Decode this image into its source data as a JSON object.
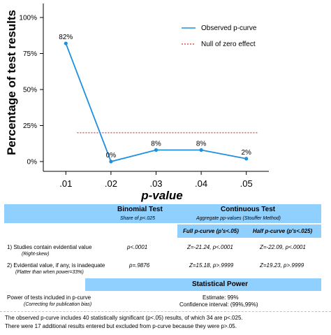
{
  "chart_data": {
    "type": "line",
    "xlabel": "p-value",
    "ylabel": "Percentage of test results",
    "categories": [
      ".01",
      ".02",
      ".03",
      ".04",
      ".05"
    ],
    "x": [
      0.01,
      0.02,
      0.03,
      0.04,
      0.05
    ],
    "ylim": [
      0,
      100
    ],
    "yticks": [
      "0%",
      "25%",
      "50%",
      "75%",
      "100%"
    ],
    "series": [
      {
        "name": "Observed p-curve",
        "values": [
          82,
          0,
          8,
          8,
          2
        ],
        "labels": [
          "82%",
          "0%",
          "8%",
          "8%",
          "2%"
        ],
        "color": "#1f8fe0",
        "style": "solid"
      },
      {
        "name": "Null of zero effect",
        "values": [
          20,
          20,
          20,
          20,
          20
        ],
        "color": "#d93030",
        "style": "dotted"
      }
    ],
    "legend": {
      "position": "top-right"
    },
    "grid": false
  },
  "table": {
    "binomial": {
      "title": "Binomial Test",
      "subtitle": "Share of p<.025"
    },
    "continuous": {
      "title": "Continuous Test",
      "subtitle": "Aggregate pp-values (Stouffer Method)",
      "full_header": "Full p-curve (p's<.05)",
      "half_header": "Half p-curve (p's<.025)"
    },
    "rows": [
      {
        "label": "1) Studies contain evidential value",
        "sublabel": "(Right-skew)",
        "binomial": "p<.0001",
        "full": "Z=-21.24, p<.0001",
        "half": "Z=-22.09, p<.0001"
      },
      {
        "label": "2) Evidential value, if any, is inadequate",
        "sublabel": "(Flatter than when power=33%)",
        "binomial": "p=.9876",
        "full": "Z=15.18, p>.9999",
        "half": "Z=19.23, p>.9999"
      }
    ],
    "power": {
      "title": "Statistical Power",
      "label": "Power of tests included in p-curve",
      "sublabel": "(Correcting for publication bias)",
      "estimate": "Estimate: 99%",
      "ci": "Confidence interval: (99%,99%)"
    }
  },
  "footnote": {
    "line1": "The observed p-curve includes 40 statistically significant (p<.05) results, of which 34 are p<.025.",
    "line2": "There were 17 additional results entered but excluded from p-curve because they were p>.05."
  }
}
